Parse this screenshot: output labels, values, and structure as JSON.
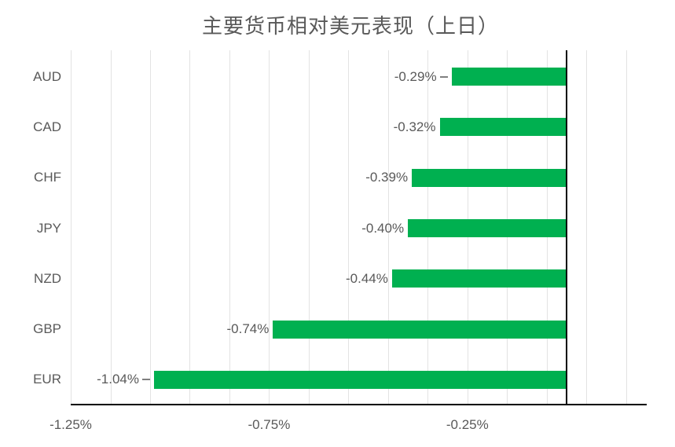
{
  "title": "主要货币相对美元表现（上日）",
  "chart_data": {
    "type": "bar",
    "orientation": "horizontal",
    "title": "主要货币相对美元表现（上日）",
    "categories": [
      "AUD",
      "CAD",
      "CHF",
      "JPY",
      "NZD",
      "GBP",
      "EUR"
    ],
    "values": [
      -0.29,
      -0.32,
      -0.39,
      -0.4,
      -0.44,
      -0.74,
      -1.04
    ],
    "data_labels": [
      "-0.29%",
      "-0.32%",
      "-0.39%",
      "-0.40%",
      "-0.44%",
      "-0.74%",
      "-1.04%"
    ],
    "leader_lines": [
      true,
      false,
      false,
      false,
      false,
      false,
      true
    ],
    "xlabel": "",
    "ylabel": "",
    "x_axis": {
      "min": -1.25,
      "max": 0.2,
      "gridline_step": 0.1,
      "tick_values": [
        -1.25,
        -0.75,
        -0.25
      ],
      "tick_labels": [
        "-1.25%",
        "-0.75%",
        "-0.25%"
      ],
      "unit": "percent"
    },
    "grid": true,
    "legend": "none",
    "colors": {
      "bar": "#00B050",
      "text": "#595959",
      "gridline": "#e3e3e3",
      "axis_line": "#000000",
      "background": "#ffffff"
    }
  }
}
